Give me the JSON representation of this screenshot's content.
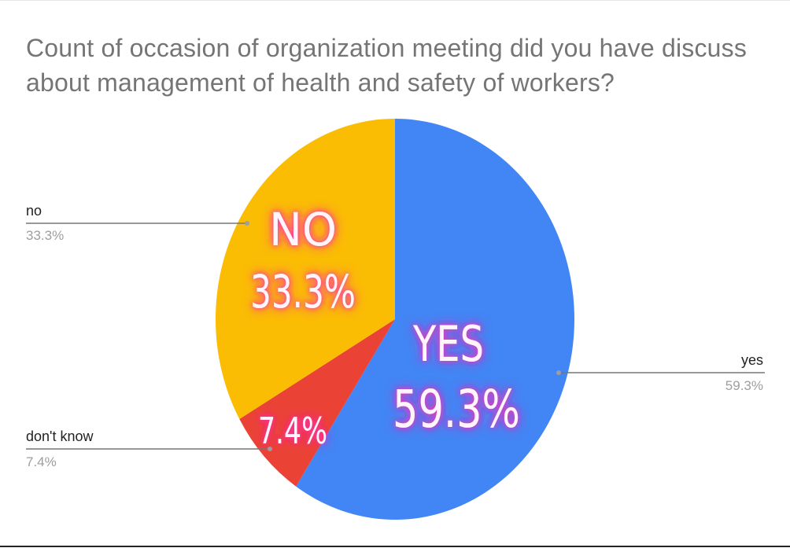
{
  "chart_data": {
    "type": "pie",
    "title": "Count of occasion of organization meeting did you have discuss about management of health and safety of workers?",
    "slices": [
      {
        "label": "yes",
        "value": 59.3,
        "display": "59.3%",
        "color": "#4285f4"
      },
      {
        "label": "don't know",
        "value": 7.4,
        "display": "7.4%",
        "color": "#ea4335"
      },
      {
        "label": "no",
        "value": 33.3,
        "display": "33.3%",
        "color": "#fbbc04"
      }
    ],
    "legend": "none (leader-line labels outside the pie)",
    "annotations": {
      "yes": [
        "YES",
        "59.3%"
      ],
      "dont_know": [
        "7.4%"
      ],
      "no": [
        "NO",
        "33.3%"
      ],
      "glow_color": "#ff2ab8"
    }
  }
}
